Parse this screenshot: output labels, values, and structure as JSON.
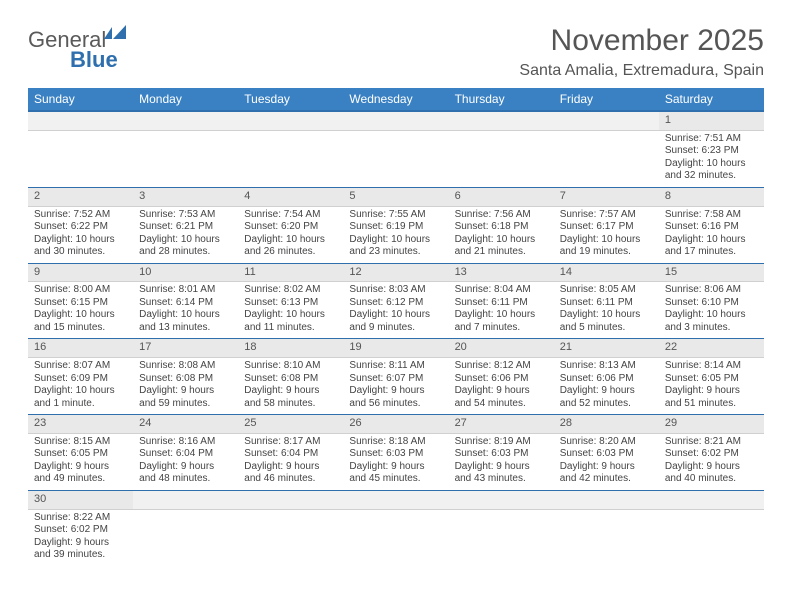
{
  "brand": {
    "part1": "General",
    "part2": "Blue"
  },
  "title": "November 2025",
  "location": "Santa Amalia, Extremadura, Spain",
  "colors": {
    "header_bg": "#3a81c4",
    "header_border": "#2f6fad",
    "daynum_bg": "#e9e9e9",
    "text": "#444444"
  },
  "daysOfWeek": [
    "Sunday",
    "Monday",
    "Tuesday",
    "Wednesday",
    "Thursday",
    "Friday",
    "Saturday"
  ],
  "weeks": [
    [
      {
        "n": "",
        "sr": "",
        "ss": "",
        "dl": ""
      },
      {
        "n": "",
        "sr": "",
        "ss": "",
        "dl": ""
      },
      {
        "n": "",
        "sr": "",
        "ss": "",
        "dl": ""
      },
      {
        "n": "",
        "sr": "",
        "ss": "",
        "dl": ""
      },
      {
        "n": "",
        "sr": "",
        "ss": "",
        "dl": ""
      },
      {
        "n": "",
        "sr": "",
        "ss": "",
        "dl": ""
      },
      {
        "n": "1",
        "sr": "Sunrise: 7:51 AM",
        "ss": "Sunset: 6:23 PM",
        "dl": "Daylight: 10 hours and 32 minutes."
      }
    ],
    [
      {
        "n": "2",
        "sr": "Sunrise: 7:52 AM",
        "ss": "Sunset: 6:22 PM",
        "dl": "Daylight: 10 hours and 30 minutes."
      },
      {
        "n": "3",
        "sr": "Sunrise: 7:53 AM",
        "ss": "Sunset: 6:21 PM",
        "dl": "Daylight: 10 hours and 28 minutes."
      },
      {
        "n": "4",
        "sr": "Sunrise: 7:54 AM",
        "ss": "Sunset: 6:20 PM",
        "dl": "Daylight: 10 hours and 26 minutes."
      },
      {
        "n": "5",
        "sr": "Sunrise: 7:55 AM",
        "ss": "Sunset: 6:19 PM",
        "dl": "Daylight: 10 hours and 23 minutes."
      },
      {
        "n": "6",
        "sr": "Sunrise: 7:56 AM",
        "ss": "Sunset: 6:18 PM",
        "dl": "Daylight: 10 hours and 21 minutes."
      },
      {
        "n": "7",
        "sr": "Sunrise: 7:57 AM",
        "ss": "Sunset: 6:17 PM",
        "dl": "Daylight: 10 hours and 19 minutes."
      },
      {
        "n": "8",
        "sr": "Sunrise: 7:58 AM",
        "ss": "Sunset: 6:16 PM",
        "dl": "Daylight: 10 hours and 17 minutes."
      }
    ],
    [
      {
        "n": "9",
        "sr": "Sunrise: 8:00 AM",
        "ss": "Sunset: 6:15 PM",
        "dl": "Daylight: 10 hours and 15 minutes."
      },
      {
        "n": "10",
        "sr": "Sunrise: 8:01 AM",
        "ss": "Sunset: 6:14 PM",
        "dl": "Daylight: 10 hours and 13 minutes."
      },
      {
        "n": "11",
        "sr": "Sunrise: 8:02 AM",
        "ss": "Sunset: 6:13 PM",
        "dl": "Daylight: 10 hours and 11 minutes."
      },
      {
        "n": "12",
        "sr": "Sunrise: 8:03 AM",
        "ss": "Sunset: 6:12 PM",
        "dl": "Daylight: 10 hours and 9 minutes."
      },
      {
        "n": "13",
        "sr": "Sunrise: 8:04 AM",
        "ss": "Sunset: 6:11 PM",
        "dl": "Daylight: 10 hours and 7 minutes."
      },
      {
        "n": "14",
        "sr": "Sunrise: 8:05 AM",
        "ss": "Sunset: 6:11 PM",
        "dl": "Daylight: 10 hours and 5 minutes."
      },
      {
        "n": "15",
        "sr": "Sunrise: 8:06 AM",
        "ss": "Sunset: 6:10 PM",
        "dl": "Daylight: 10 hours and 3 minutes."
      }
    ],
    [
      {
        "n": "16",
        "sr": "Sunrise: 8:07 AM",
        "ss": "Sunset: 6:09 PM",
        "dl": "Daylight: 10 hours and 1 minute."
      },
      {
        "n": "17",
        "sr": "Sunrise: 8:08 AM",
        "ss": "Sunset: 6:08 PM",
        "dl": "Daylight: 9 hours and 59 minutes."
      },
      {
        "n": "18",
        "sr": "Sunrise: 8:10 AM",
        "ss": "Sunset: 6:08 PM",
        "dl": "Daylight: 9 hours and 58 minutes."
      },
      {
        "n": "19",
        "sr": "Sunrise: 8:11 AM",
        "ss": "Sunset: 6:07 PM",
        "dl": "Daylight: 9 hours and 56 minutes."
      },
      {
        "n": "20",
        "sr": "Sunrise: 8:12 AM",
        "ss": "Sunset: 6:06 PM",
        "dl": "Daylight: 9 hours and 54 minutes."
      },
      {
        "n": "21",
        "sr": "Sunrise: 8:13 AM",
        "ss": "Sunset: 6:06 PM",
        "dl": "Daylight: 9 hours and 52 minutes."
      },
      {
        "n": "22",
        "sr": "Sunrise: 8:14 AM",
        "ss": "Sunset: 6:05 PM",
        "dl": "Daylight: 9 hours and 51 minutes."
      }
    ],
    [
      {
        "n": "23",
        "sr": "Sunrise: 8:15 AM",
        "ss": "Sunset: 6:05 PM",
        "dl": "Daylight: 9 hours and 49 minutes."
      },
      {
        "n": "24",
        "sr": "Sunrise: 8:16 AM",
        "ss": "Sunset: 6:04 PM",
        "dl": "Daylight: 9 hours and 48 minutes."
      },
      {
        "n": "25",
        "sr": "Sunrise: 8:17 AM",
        "ss": "Sunset: 6:04 PM",
        "dl": "Daylight: 9 hours and 46 minutes."
      },
      {
        "n": "26",
        "sr": "Sunrise: 8:18 AM",
        "ss": "Sunset: 6:03 PM",
        "dl": "Daylight: 9 hours and 45 minutes."
      },
      {
        "n": "27",
        "sr": "Sunrise: 8:19 AM",
        "ss": "Sunset: 6:03 PM",
        "dl": "Daylight: 9 hours and 43 minutes."
      },
      {
        "n": "28",
        "sr": "Sunrise: 8:20 AM",
        "ss": "Sunset: 6:03 PM",
        "dl": "Daylight: 9 hours and 42 minutes."
      },
      {
        "n": "29",
        "sr": "Sunrise: 8:21 AM",
        "ss": "Sunset: 6:02 PM",
        "dl": "Daylight: 9 hours and 40 minutes."
      }
    ],
    [
      {
        "n": "30",
        "sr": "Sunrise: 8:22 AM",
        "ss": "Sunset: 6:02 PM",
        "dl": "Daylight: 9 hours and 39 minutes."
      },
      {
        "n": "",
        "sr": "",
        "ss": "",
        "dl": ""
      },
      {
        "n": "",
        "sr": "",
        "ss": "",
        "dl": ""
      },
      {
        "n": "",
        "sr": "",
        "ss": "",
        "dl": ""
      },
      {
        "n": "",
        "sr": "",
        "ss": "",
        "dl": ""
      },
      {
        "n": "",
        "sr": "",
        "ss": "",
        "dl": ""
      },
      {
        "n": "",
        "sr": "",
        "ss": "",
        "dl": ""
      }
    ]
  ]
}
